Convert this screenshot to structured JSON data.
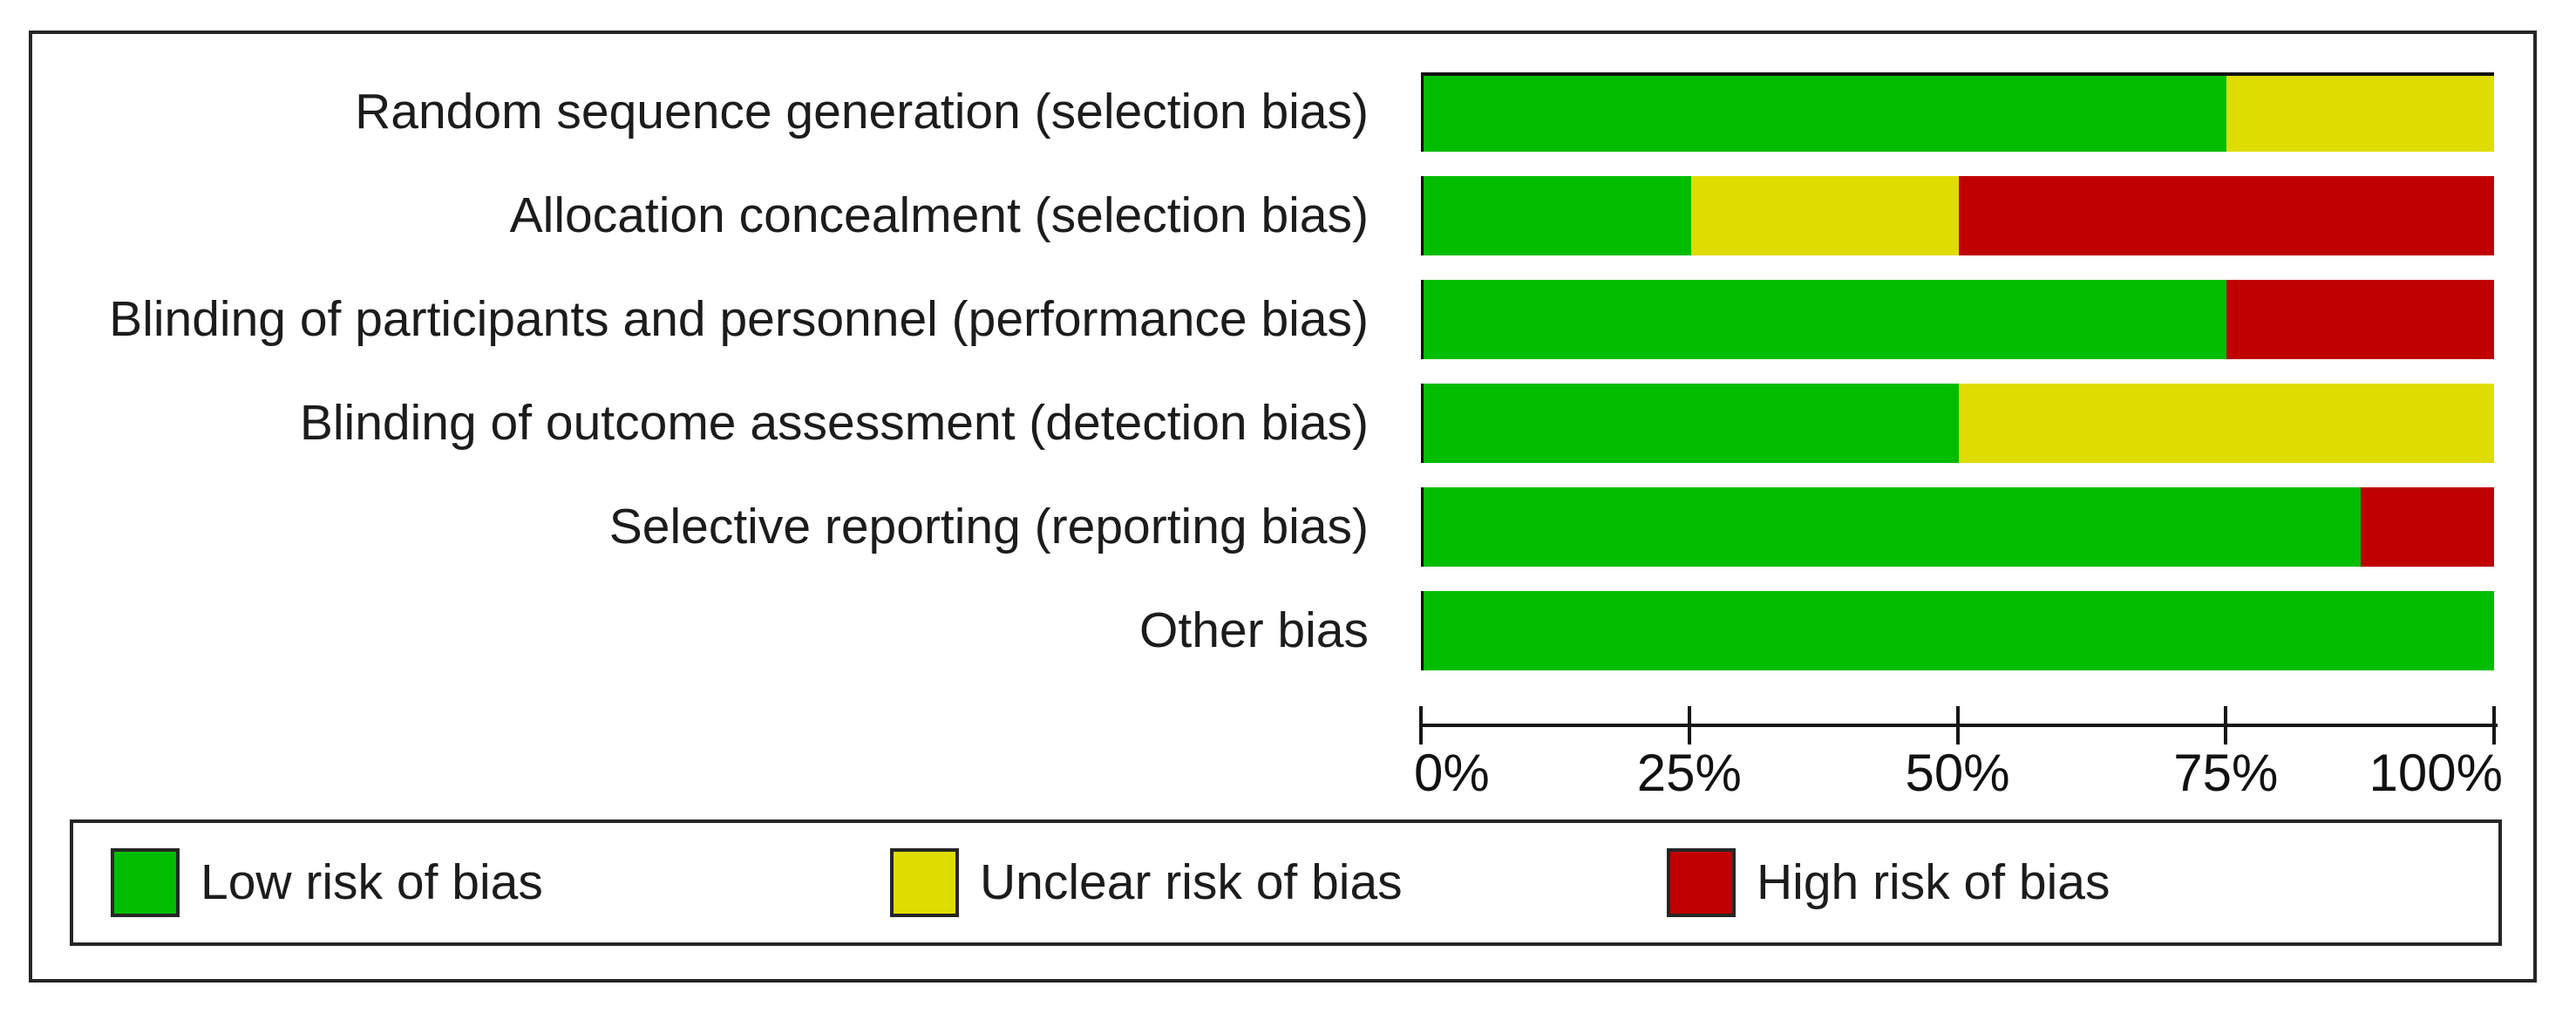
{
  "chart_data": {
    "type": "bar",
    "variant": "horizontal-stacked",
    "title": "",
    "xlabel": "",
    "ylabel": "",
    "xlim": [
      0,
      100
    ],
    "grid": false,
    "legend_position": "bottom",
    "x_tick_labels": [
      "0%",
      "25%",
      "50%",
      "75%",
      "100%"
    ],
    "categories": [
      "Random sequence generation (selection bias)",
      "Allocation concealment (selection bias)",
      "Blinding of participants and personnel (performance bias)",
      "Blinding of outcome assessment (detection bias)",
      "Selective reporting (reporting bias)",
      "Other bias"
    ],
    "series": [
      {
        "name": "Low risk of bias",
        "color": "#00bd00",
        "values": [
          75,
          25,
          75,
          50,
          87.5,
          100
        ]
      },
      {
        "name": "Unclear risk of bias",
        "color": "#dfdc00",
        "values": [
          25,
          25,
          0,
          50,
          0,
          0
        ]
      },
      {
        "name": "High risk of bias",
        "color": "#c00000",
        "values": [
          0,
          50,
          25,
          0,
          12.5,
          0
        ]
      }
    ]
  }
}
